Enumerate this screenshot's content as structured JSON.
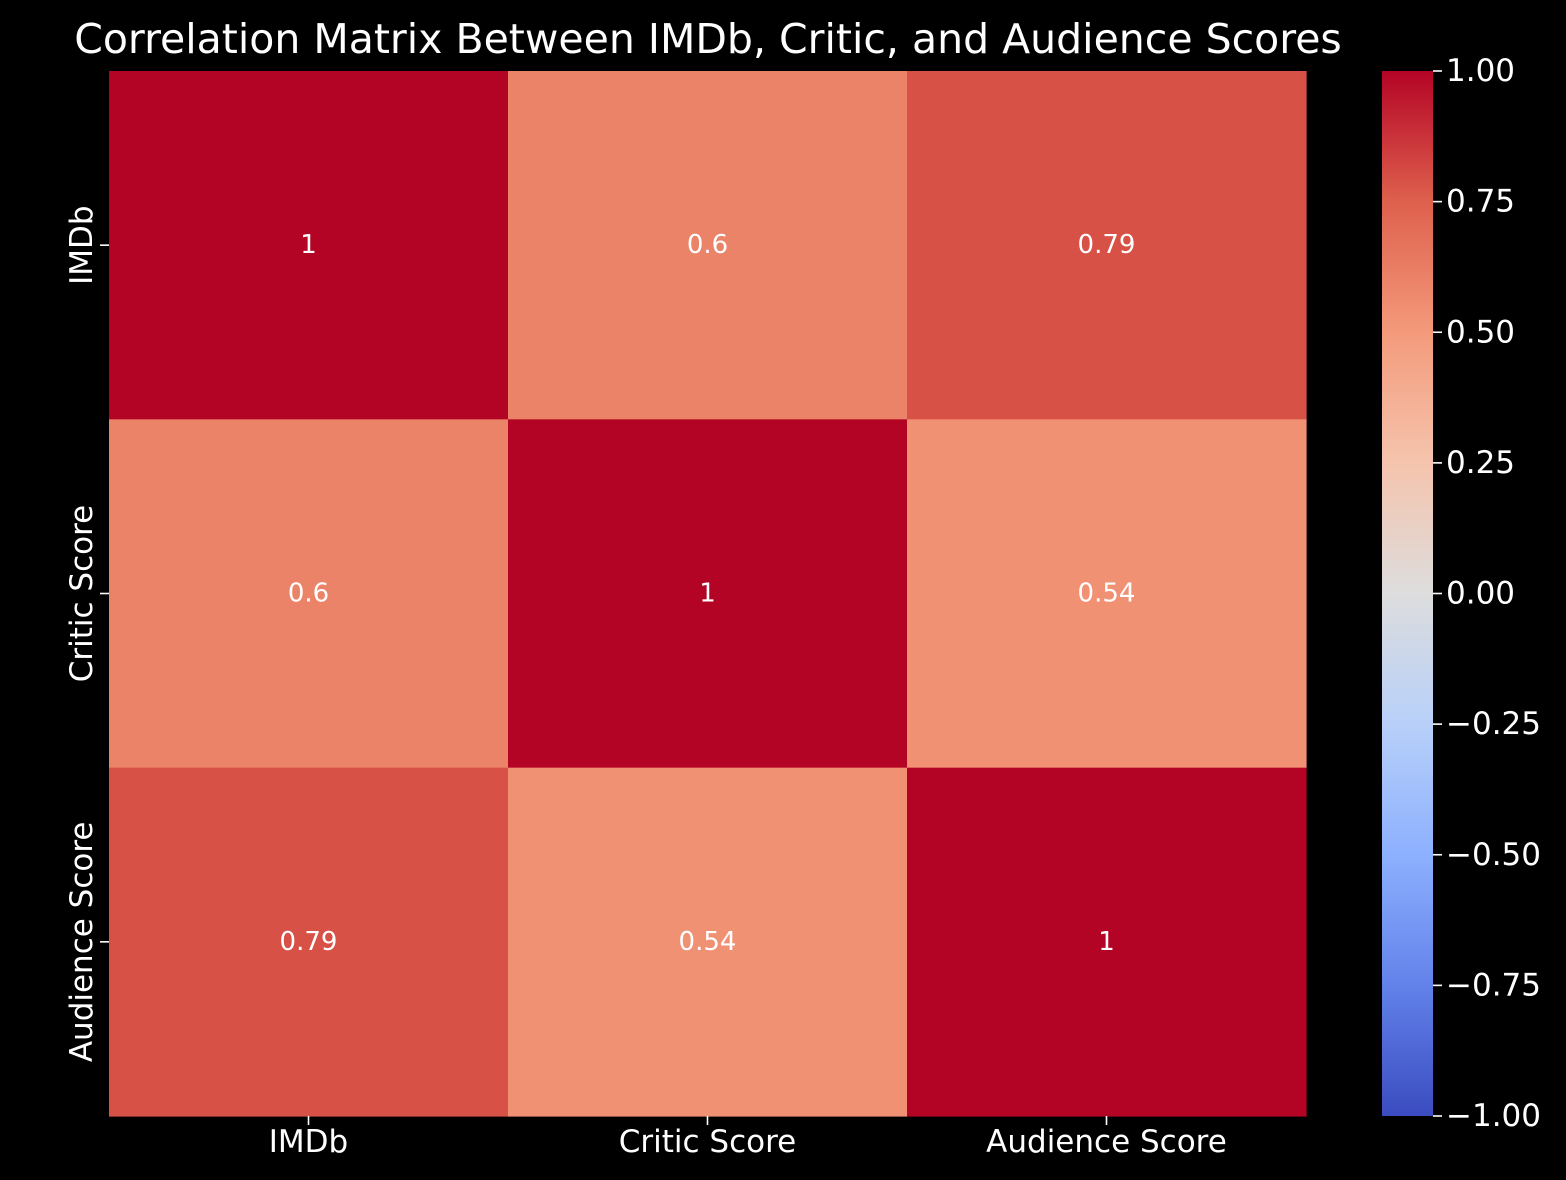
{
  "chart_data": {
    "type": "heatmap",
    "title": "Correlation Matrix Between IMDb, Critic, and Audience Scores",
    "x_labels": [
      "IMDb",
      "Critic Score",
      "Audience Score"
    ],
    "y_labels": [
      "IMDb",
      "Critic Score",
      "Audience Score"
    ],
    "values": [
      [
        1,
        0.6,
        0.79
      ],
      [
        0.6,
        1,
        0.54
      ],
      [
        0.79,
        0.54,
        1
      ]
    ],
    "cell_labels": [
      [
        "1",
        "0.6",
        "0.79"
      ],
      [
        "0.6",
        "1",
        "0.54"
      ],
      [
        "0.79",
        "0.54",
        "1"
      ]
    ],
    "colormap": "coolwarm",
    "vmin": -1,
    "vmax": 1,
    "colorbar": {
      "ticks": [
        1.0,
        0.75,
        0.5,
        0.25,
        0.0,
        -0.25,
        -0.5,
        -0.75,
        -1.0
      ],
      "tick_labels": [
        "1.00",
        "0.75",
        "0.50",
        "0.25",
        "0.00",
        "−0.25",
        "−0.50",
        "−0.75",
        "−1.00"
      ]
    },
    "background_color": "#000000",
    "text_color": "#ffffff"
  }
}
